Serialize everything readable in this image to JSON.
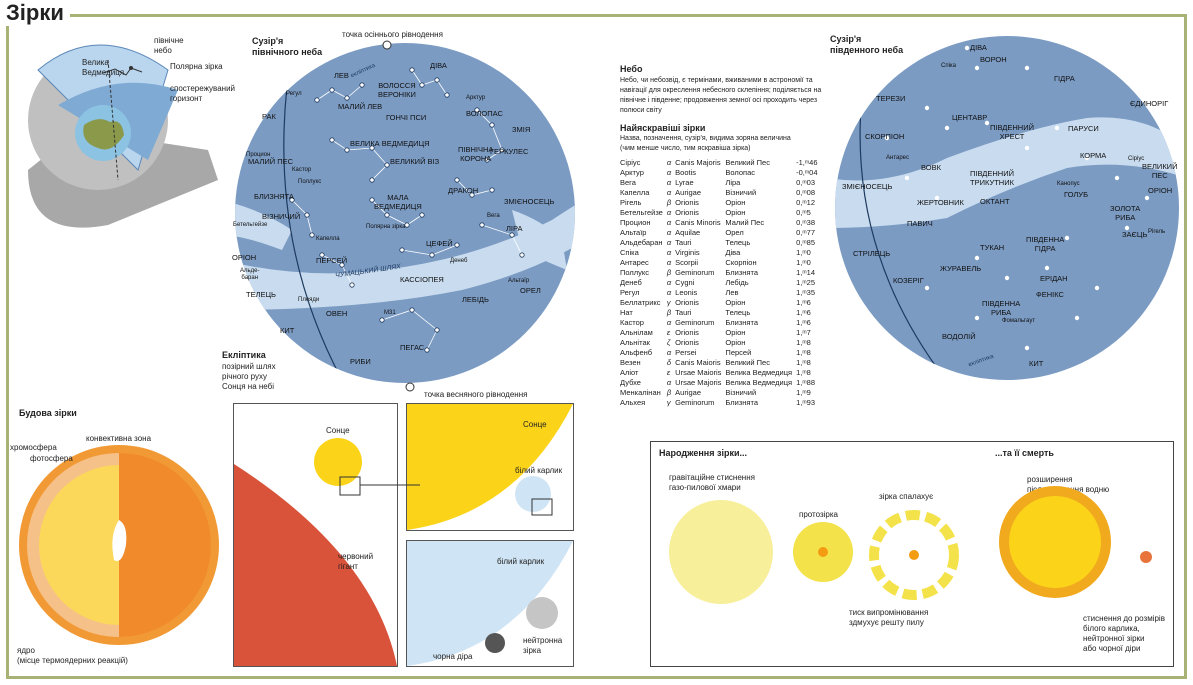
{
  "page": {
    "title": "Зірки"
  },
  "earth_diagram": {
    "north_sky": "північне\nнебо",
    "ursa_major": "Велика\nВедмедиця",
    "polaris": "Полярна зірка",
    "observed_horizon": "спостережуваний\nгоризонт"
  },
  "north_sky": {
    "title": "Сузір'я\nпівнічного неба",
    "autumn_equinox": "точка осіннього рівнодення",
    "spring_equinox": "точка весняного рівнодення",
    "ecliptic_title": "Екліптика",
    "ecliptic_desc": "позірний шлях\nрічного руху\nСонця на небі",
    "ecliptic_curve_label": "екліптика",
    "milky_way": "ЧУМАЦЬКИЙ ШЛЯХ",
    "constellations": [
      "ДІВА",
      "ЛЕВ",
      "ВОЛОССЯ\nВЕРОНІКИ",
      "МАЛИЙ ЛЕВ",
      "ГОНЧІ ПСИ",
      "ВОЛОПАС",
      "ЗМІЯ",
      "РАК",
      "ВЕЛИКА ВЕДМЕДИЦЯ",
      "ВЕЛИКИЙ ВІЗ",
      "ПІВНІЧНА\nКОРОНА",
      "ГЕРКУЛЕС",
      "МАЛИЙ ПЕС",
      "БЛИЗНЯТА",
      "МАЛА\nВЕДМЕДИЦЯ",
      "ДРАКОН",
      "ЗМІЄНОСЕЦЬ",
      "ВІЗНИЧИЙ",
      "ЛІРА",
      "ЦЕФЕЙ",
      "ОРІОН",
      "ПЕРСЕЙ",
      "КАССІОПЕЯ",
      "ТЕЛЕЦЬ",
      "ЛЕБІДЬ",
      "ОРЕЛ",
      "КИТ",
      "ОВЕН",
      "ПЕГАС",
      "РИБИ"
    ],
    "stars": [
      "Регул",
      "Арктур",
      "Процион",
      "Кастор",
      "Поллукс",
      "Полярна зірка",
      "Бетельгейзе",
      "Капелла",
      "Альде-\nбаран",
      "Вега",
      "Денеб",
      "Альтаїр",
      "Плеяди",
      "М31"
    ]
  },
  "south_sky": {
    "title": "Сузір'я\nпівденного неба",
    "ecliptic_curve_label": "екліптика",
    "constellations": [
      "ДІВА",
      "ВОРОН",
      "ГІДРА",
      "ТЕРЕЗИ",
      "ЄДИНОРІГ",
      "ЦЕНТАВР",
      "ПІВДЕННИЙ\nХРЕСТ",
      "ПАРУСИ",
      "СКОРПІОН",
      "ВОВК",
      "ПІВДЕННИЙ\nТРИКУТНИК",
      "КОРМА",
      "ВЕЛИКИЙ\nПЕС",
      "ЗМІЄНОСЕЦЬ",
      "ЖЕРТОВНИК",
      "ОКТАНТ",
      "ГОЛУБ",
      "ОРІОН",
      "ЗОЛОТА\nРИБА",
      "ПАВИЧ",
      "ТУКАН",
      "ПІВДЕННА\nГІДРА",
      "ЗАЄЦЬ",
      "СТРІЛЕЦЬ",
      "ЖУРАВЕЛЬ",
      "ЕРІДАН",
      "КОЗЕРІГ",
      "ФЕНІКС",
      "ПІВДЕННА\nРИБА",
      "ВОДОЛІЙ",
      "КИТ"
    ],
    "stars": [
      "Спіка",
      "Антарес",
      "Канопус",
      "Сіріус",
      "Рігель",
      "Фомальгаут"
    ]
  },
  "sky_info": {
    "heading": "Небо",
    "text": "Небо, чи небозвід, є термінами, вживаними в астрономії та навігації для окреслення небесного склепіння; поділяється на північне і південне; продовження земної осі проходить через полюси світу",
    "brightest_heading": "Найяскравіші зірки",
    "brightest_sub": "Назва, позначення, сузір'я, видима зоряна величина\n(чим менше число, тим яскравіша зірка)"
  },
  "brightest_stars": [
    [
      "Сіріус",
      "α",
      "Canis Majoris",
      "Великий Пес",
      "-1,ᵐ46"
    ],
    [
      "Арктур",
      "α",
      "Bootis",
      "Волопас",
      "-0,ᵐ04"
    ],
    [
      "Вега",
      "α",
      "Lyrae",
      "Ліра",
      "0,ᵐ03"
    ],
    [
      "Капелла",
      "α",
      "Aurigae",
      "Візничий",
      "0,ᵐ08"
    ],
    [
      "Рігель",
      "β",
      "Orionis",
      "Оріон",
      "0,ᵐ12"
    ],
    [
      "Бетельгейзе",
      "α",
      "Orionis",
      "Оріон",
      "0,ᵐ5"
    ],
    [
      "Процион",
      "α",
      "Canis Minoris",
      "Малий Пес",
      "0,ᵐ38"
    ],
    [
      "Альтаїр",
      "α",
      "Aquilae",
      "Орел",
      "0,ᵐ77"
    ],
    [
      "Альдебаран",
      "α",
      "Tauri",
      "Телець",
      "0,ᵐ85"
    ],
    [
      "Спіка",
      "α",
      "Virginis",
      "Діва",
      "1,ᵐ0"
    ],
    [
      "Антарес",
      "α",
      "Scorpii",
      "Скорпіон",
      "1,ᵐ0"
    ],
    [
      "Поллукс",
      "β",
      "Geminorum",
      "Близнята",
      "1,ᵐ14"
    ],
    [
      "Денеб",
      "α",
      "Cygni",
      "Лебідь",
      "1,ᵐ25"
    ],
    [
      "Регул",
      "α",
      "Leonis",
      "Лев",
      "1,ᵐ35"
    ],
    [
      "Беллатрикс",
      "γ",
      "Orionis",
      "Оріон",
      "1,ᵐ6"
    ],
    [
      "Нат",
      "β",
      "Tauri",
      "Телець",
      "1,ᵐ6"
    ],
    [
      "Кастор",
      "α",
      "Geminorum",
      "Близнята",
      "1,ᵐ6"
    ],
    [
      "Альнілам",
      "ε",
      "Orionis",
      "Оріон",
      "1,ᵐ7"
    ],
    [
      "Альнітак",
      "ζ",
      "Orionis",
      "Оріон",
      "1,ᵐ8"
    ],
    [
      "Альфенб",
      "α",
      "Persei",
      "Персей",
      "1,ᵐ8"
    ],
    [
      "Везен",
      "δ",
      "Canis Maioris",
      "Великий Пес",
      "1,ᵐ8"
    ],
    [
      "Аліот",
      "ε",
      "Ursae Maioris",
      "Велика Ведмедиця",
      "1,ᵐ8"
    ],
    [
      "Дубхе",
      "α",
      "Ursae Majoris",
      "Велика Ведмедиця",
      "1,ᵐ88"
    ],
    [
      "Менкалінан",
      "β",
      "Aurigae",
      "Візничий",
      "1,ᵐ9"
    ],
    [
      "Альхея",
      "γ",
      "Geminorum",
      "Близнята",
      "1,ᵐ93"
    ]
  ],
  "star_structure": {
    "heading": "Будова зірки",
    "chromosphere": "хромосфера",
    "photosphere": "фотосфера",
    "convective_zone": "конвективна зона",
    "core": "ядро\n(місце термоядерних реакцій)"
  },
  "size_compare": {
    "sun": "Сонце",
    "red_giant": "червоний\nгігант",
    "sun2": "Сонце",
    "white_dwarf": "білий карлик",
    "white_dwarf2": "білий карлик",
    "black_hole": "чорна діра",
    "neutron_star": "нейтронна\nзірка"
  },
  "birth_death": {
    "birth_title": "Народження зірки...",
    "death_title": "...та її смерть",
    "gravitational": "гравітаційне стиснення\nгазо-пилової хмари",
    "protostar": "протозірка",
    "star_ignites": "зірка спалахує",
    "radiation_pressure": "тиск випромінювання\nздмухує решту пилу",
    "expansion": "розширення\nпісля спалення водню",
    "compression": "стиснення до розмірів\nбілого карлика,\nнейтронної зірки\nабо чорної діри"
  },
  "colors": {
    "frame": "#a9b275",
    "sky": "#7b9bc3",
    "milky": "#c9dcef",
    "sun": "#fbd41a",
    "red_giant": "#d9533a",
    "white_dwarf": "#cfe4f4",
    "sun_outer": "#f19a35"
  }
}
